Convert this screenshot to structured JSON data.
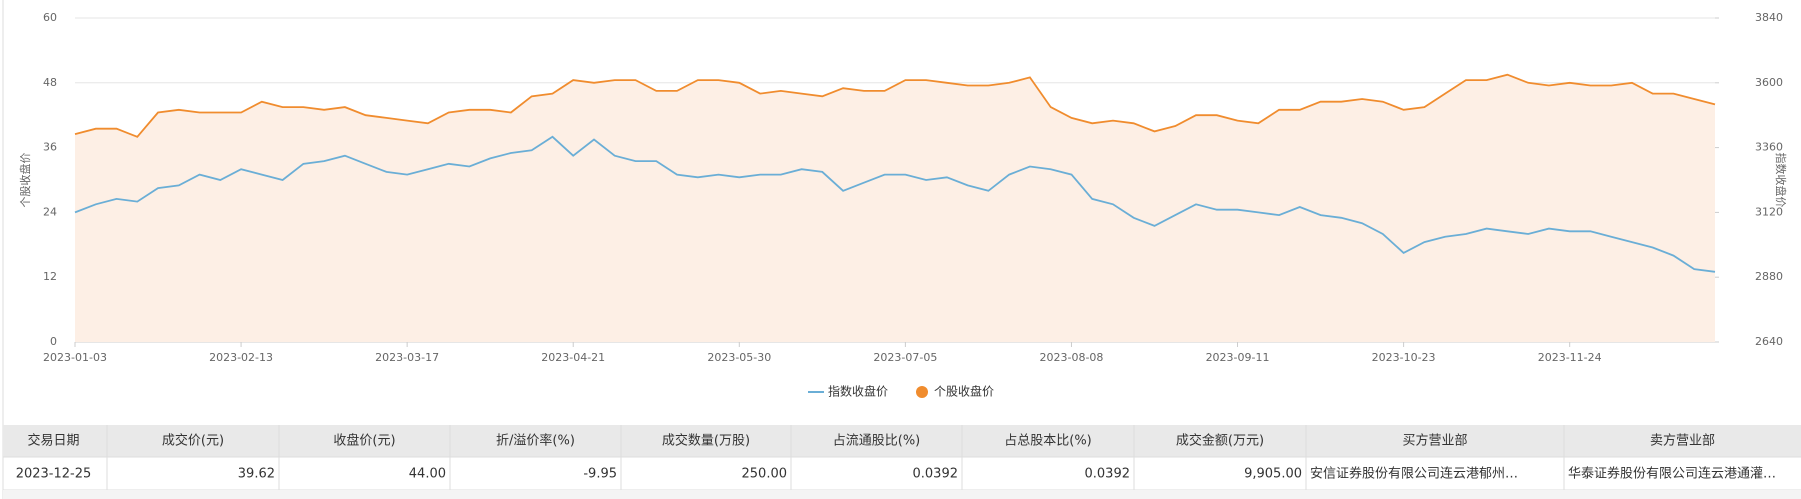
{
  "chart_data": {
    "type": "line",
    "categories": [
      "2023-01-03",
      null,
      null,
      null,
      null,
      null,
      null,
      null,
      "2023-02-13",
      null,
      null,
      null,
      null,
      null,
      null,
      null,
      "2023-03-17",
      null,
      null,
      null,
      null,
      null,
      null,
      null,
      "2023-04-21",
      null,
      null,
      null,
      null,
      null,
      null,
      null,
      "2023-05-30",
      null,
      null,
      null,
      null,
      null,
      null,
      null,
      "2023-07-05",
      null,
      null,
      null,
      null,
      null,
      null,
      null,
      "2023-08-08",
      null,
      null,
      null,
      null,
      null,
      null,
      null,
      "2023-09-11",
      null,
      null,
      null,
      null,
      null,
      null,
      null,
      "2023-10-23",
      null,
      null,
      null,
      null,
      null,
      null,
      null,
      "2023-11-24",
      null,
      null,
      null,
      null,
      null,
      null,
      null
    ],
    "series": [
      {
        "name": "指数收盘价",
        "color": "#6aaed6",
        "axis": "y2",
        "values": [
          3120,
          3150,
          3170,
          3160,
          3210,
          3220,
          3260,
          3240,
          3280,
          3260,
          3240,
          3300,
          3310,
          3330,
          3300,
          3270,
          3260,
          3280,
          3300,
          3290,
          3320,
          3340,
          3350,
          3400,
          3330,
          3390,
          3330,
          3310,
          3310,
          3260,
          3250,
          3260,
          3250,
          3260,
          3260,
          3280,
          3270,
          3200,
          3230,
          3260,
          3260,
          3240,
          3250,
          3220,
          3200,
          3260,
          3290,
          3280,
          3260,
          3170,
          3150,
          3100,
          3070,
          3110,
          3150,
          3130,
          3130,
          3120,
          3110,
          3140,
          3110,
          3100,
          3080,
          3040,
          2970,
          3010,
          3030,
          3040,
          3060,
          3050,
          3040,
          3060,
          3050,
          3050,
          3030,
          3010,
          2990,
          2960,
          2910,
          2900
        ]
      },
      {
        "name": "个股收盘价",
        "color": "#f08c2e",
        "fill_color": "#fdefe5",
        "values": [
          38.5,
          39.5,
          39.5,
          38,
          42.5,
          43,
          42.5,
          42.5,
          42.5,
          44.5,
          43.5,
          43.5,
          43,
          43.5,
          42,
          41.5,
          41,
          40.5,
          42.5,
          43,
          43,
          42.5,
          45.5,
          46,
          48.5,
          48,
          48.5,
          48.5,
          46.5,
          46.5,
          48.5,
          48.5,
          48,
          46,
          46.5,
          46,
          45.5,
          47,
          46.5,
          46.5,
          48.5,
          48.5,
          48,
          47.5,
          47.5,
          48,
          49,
          43.5,
          41.5,
          40.5,
          41,
          40.5,
          39,
          40,
          42,
          42,
          41,
          40.5,
          43,
          43,
          44.5,
          44.5,
          45,
          44.5,
          43,
          43.5,
          46,
          48.5,
          48.5,
          49.5,
          48,
          47.5,
          48,
          47.5,
          47.5,
          48,
          46,
          46,
          45,
          44
        ]
      }
    ],
    "ylabel": "个股收盘价",
    "y2label": "指数收盘价",
    "ylim": [
      0,
      60
    ],
    "yticks": [
      0,
      12,
      24,
      36,
      48,
      60
    ],
    "y2lim": [
      2640,
      3840
    ],
    "y2ticks": [
      2640,
      2880,
      3120,
      3360,
      3600,
      3840
    ],
    "grid": true,
    "legend": "bottom"
  },
  "table": {
    "columns": [
      "交易日期",
      "成交价(元)",
      "收盘价(元)",
      "折/溢价率(%)",
      "成交数量(万股)",
      "占流通股比(%)",
      "占总股本比(%)",
      "成交金额(万元)",
      "买方营业部",
      "卖方营业部"
    ],
    "rows": [
      [
        "2023-12-25",
        "39.62",
        "44.00",
        "-9.95",
        "250.00",
        "0.0392",
        "0.0392",
        "9,905.00",
        "安信证券股份有限公司连云港郁州…",
        "华泰证券股份有限公司连云港通灌…"
      ]
    ]
  }
}
